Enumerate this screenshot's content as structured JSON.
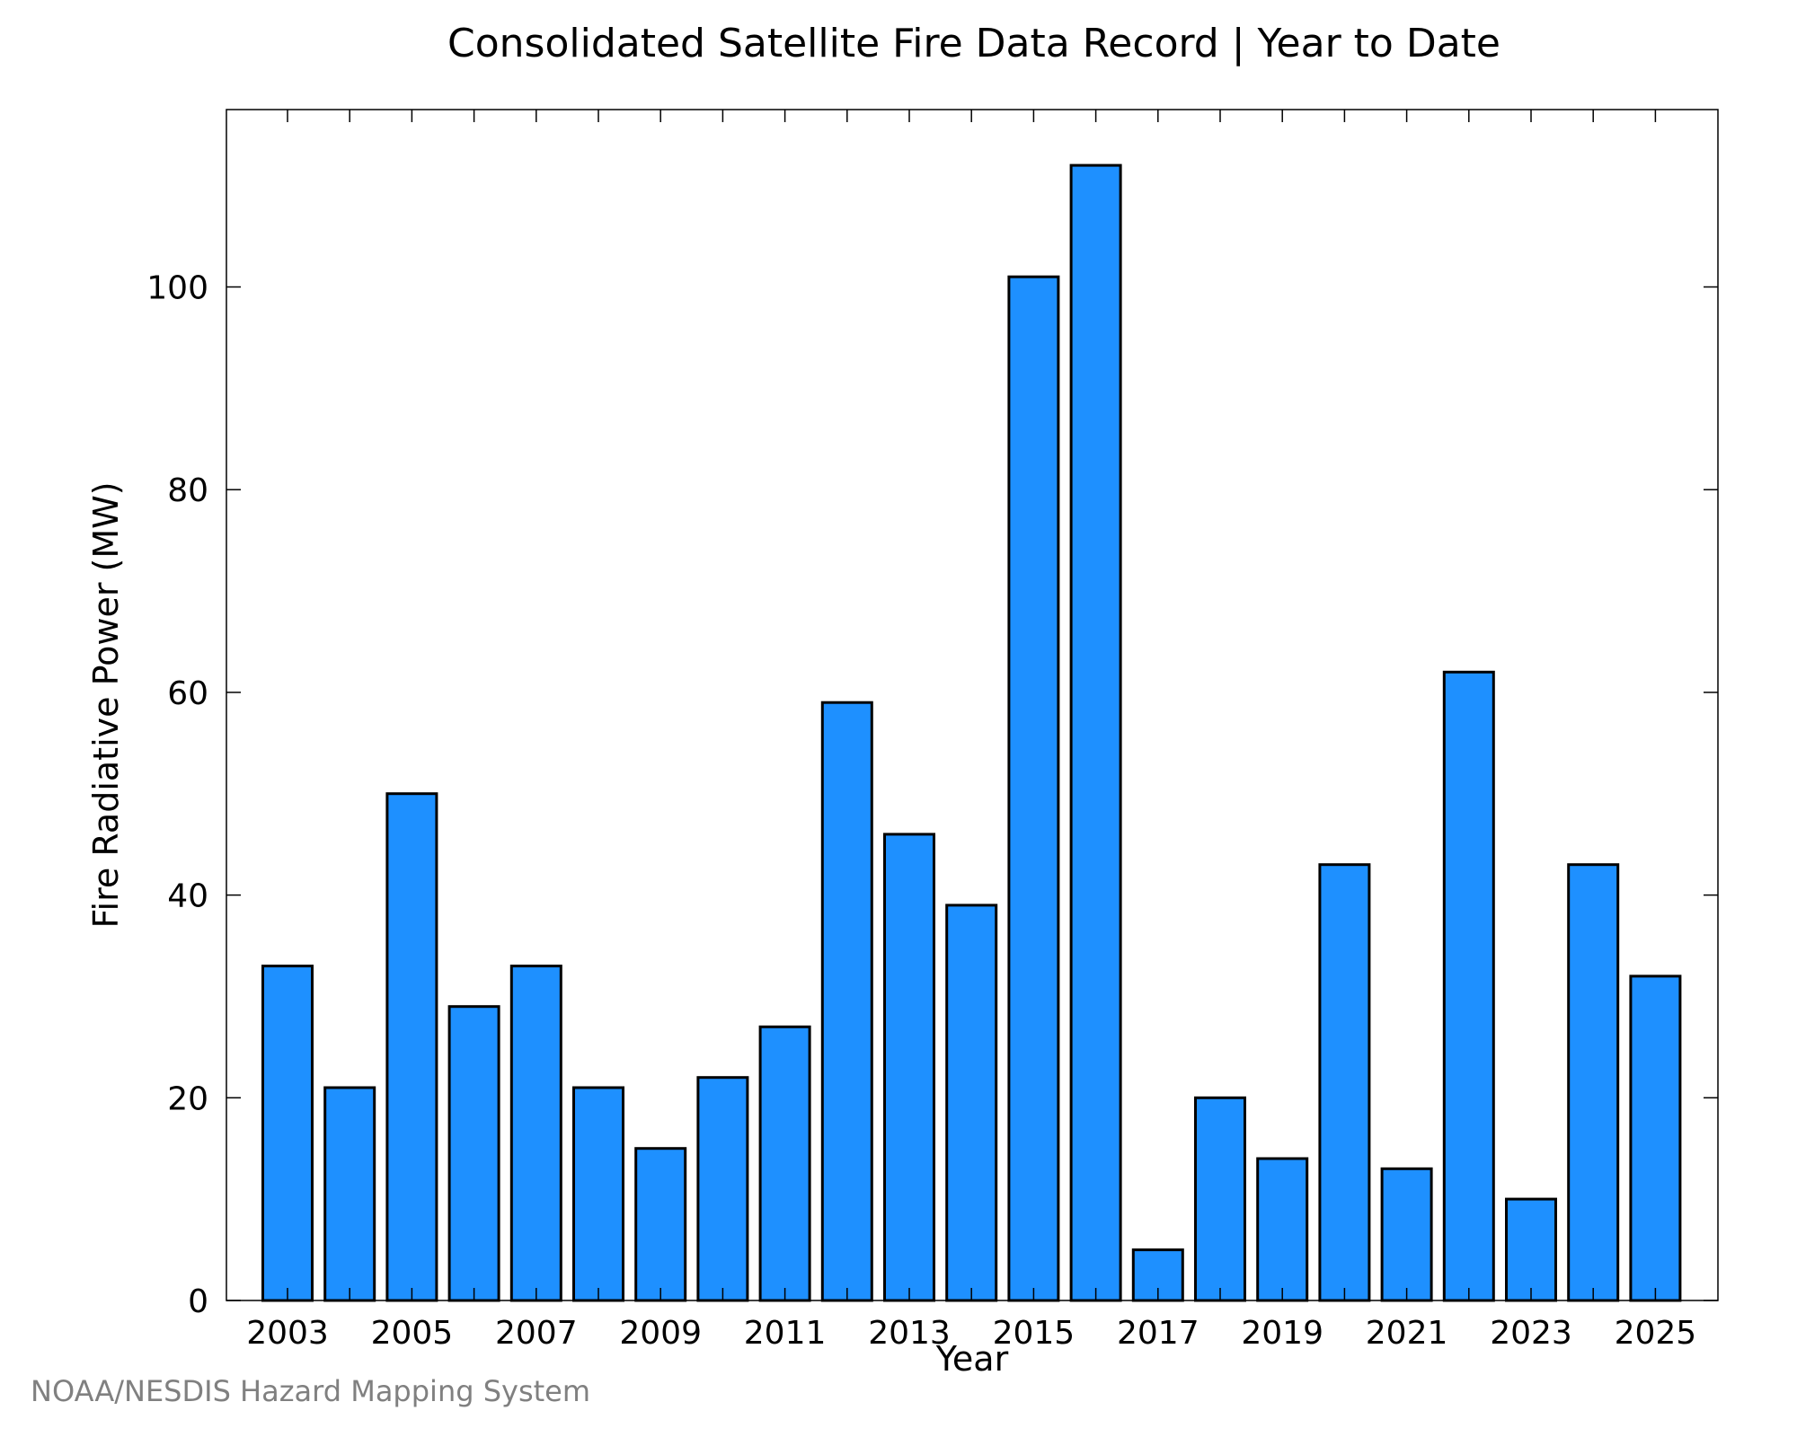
{
  "footer": {
    "credit": "NOAA/NESDIS Hazard Mapping System"
  },
  "colors": {
    "bar_fill": "#1e90ff",
    "bar_stroke": "#000000",
    "background": "#ffffff"
  },
  "chart_data": {
    "type": "bar",
    "title": "Consolidated Satellite Fire Data Record | Year to Date",
    "xlabel": "Year",
    "ylabel": "Fire Radiative Power (MW)",
    "categories": [
      "2003",
      "2004",
      "2005",
      "2006",
      "2007",
      "2008",
      "2009",
      "2010",
      "2011",
      "2012",
      "2013",
      "2014",
      "2015",
      "2016",
      "2017",
      "2018",
      "2019",
      "2020",
      "2021",
      "2022",
      "2023",
      "2024",
      "2025"
    ],
    "values": [
      33,
      21,
      50,
      29,
      33,
      21,
      15,
      22,
      27,
      59,
      46,
      39,
      101,
      112,
      5,
      20,
      14,
      43,
      13,
      62,
      10,
      43,
      32
    ],
    "xtick_labels": [
      "2003",
      "2005",
      "2007",
      "2009",
      "2011",
      "2013",
      "2015",
      "2017",
      "2019",
      "2021",
      "2023",
      "2025"
    ],
    "yticks": [
      0,
      20,
      40,
      60,
      80,
      100
    ],
    "ylim": [
      0,
      117.5
    ],
    "grid": false,
    "legend": "none"
  }
}
